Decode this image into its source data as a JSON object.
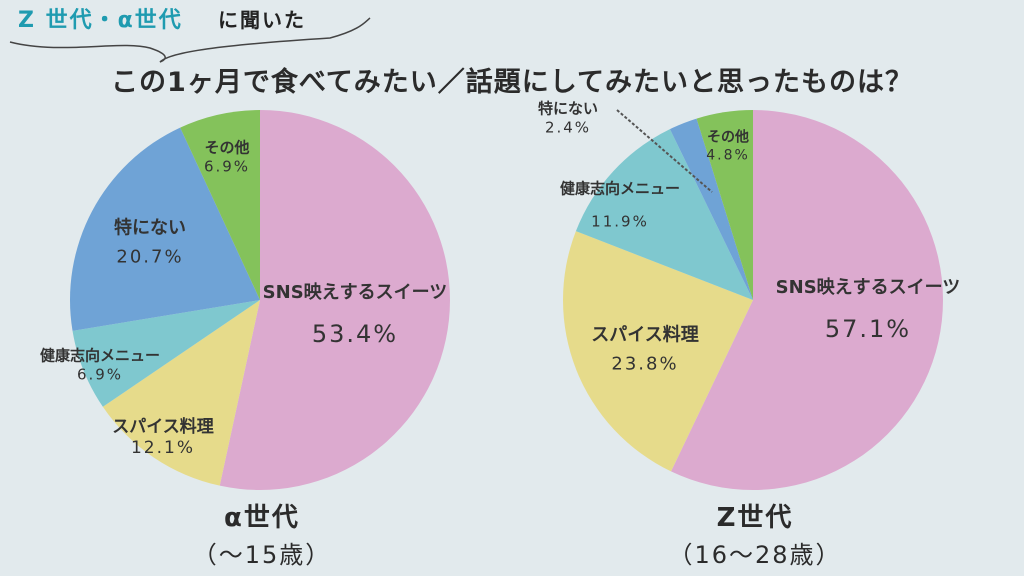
{
  "header": {
    "highlight": "Z 世代・α世代",
    "suffix": "に聞いた"
  },
  "title": "この1ヶ月で食べてみたい／話題にしてみたいと思ったものは？",
  "colors": {
    "SNS映えするスイーツ": "#dcaacf",
    "スパイス料理": "#e6db8b",
    "健康志向メニュー": "#7fc8cf",
    "特にない": "#6fa3d6",
    "その他": "#84c25b"
  },
  "chart_data": [
    {
      "type": "pie",
      "title": "α世代",
      "subtitle": "（～15歳）",
      "slices": [
        {
          "label": "SNS映えするスイーツ",
          "value": 53.4,
          "text": "53.4%"
        },
        {
          "label": "スパイス料理",
          "value": 12.1,
          "text": "12.1%"
        },
        {
          "label": "健康志向メニュー",
          "value": 6.9,
          "text": "6.9%"
        },
        {
          "label": "特にない",
          "value": 20.7,
          "text": "20.7%"
        },
        {
          "label": "その他",
          "value": 6.9,
          "text": "6.9%"
        }
      ]
    },
    {
      "type": "pie",
      "title": "Z世代",
      "subtitle": "（16～28歳）",
      "slices": [
        {
          "label": "SNS映えするスイーツ",
          "value": 57.1,
          "text": "57.1%"
        },
        {
          "label": "スパイス料理",
          "value": 23.8,
          "text": "23.8%"
        },
        {
          "label": "健康志向メニュー",
          "value": 11.9,
          "text": "11.9%"
        },
        {
          "label": "特にない",
          "value": 2.4,
          "text": "2.4%"
        },
        {
          "label": "その他",
          "value": 4.8,
          "text": "4.8%"
        }
      ]
    }
  ]
}
